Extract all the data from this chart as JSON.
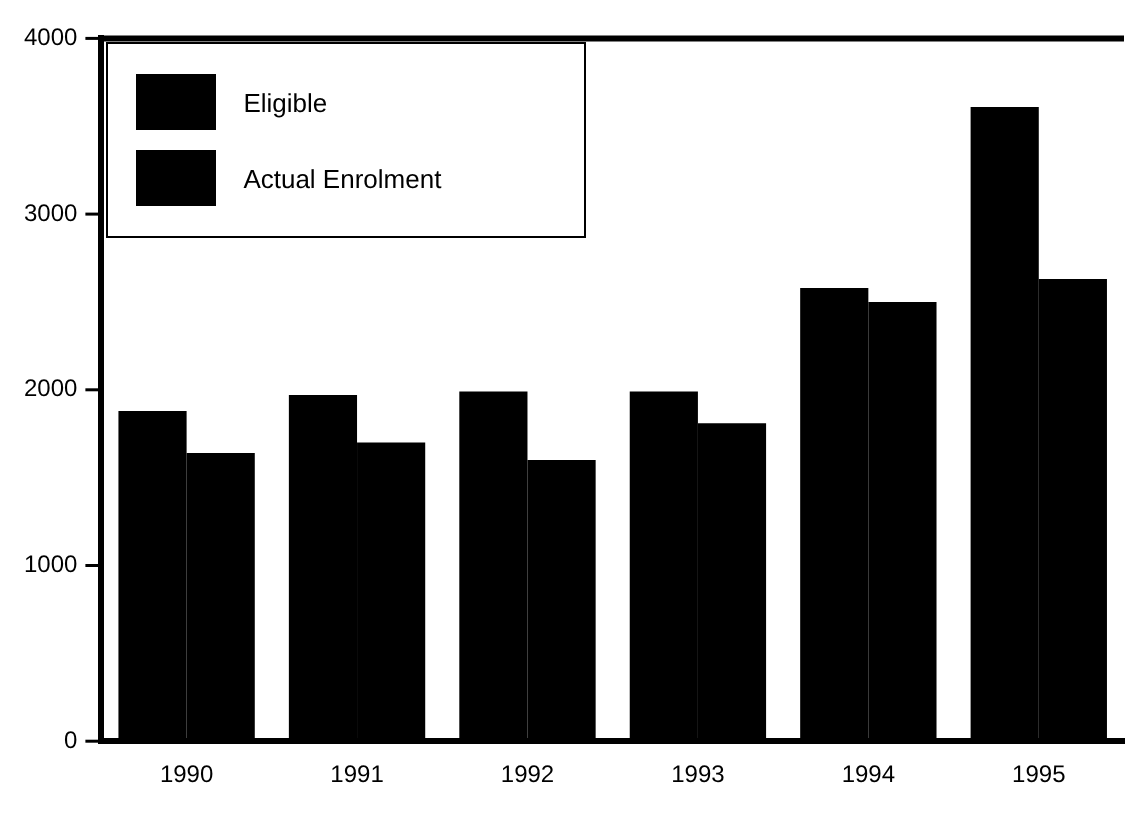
{
  "chart_data": {
    "type": "bar",
    "categories": [
      "1990",
      "1991",
      "1992",
      "1993",
      "1994",
      "1995"
    ],
    "series": [
      {
        "name": "Eligible",
        "color": "#000000",
        "values": [
          1880,
          1970,
          1990,
          1990,
          2580,
          3610
        ]
      },
      {
        "name": "Actual Enrolment",
        "color": "#000000",
        "values": [
          1640,
          1700,
          1600,
          1810,
          2500,
          2630
        ]
      }
    ],
    "ylim": [
      0,
      4000
    ],
    "yticks": [
      0,
      1000,
      2000,
      3000,
      4000
    ],
    "grid": false,
    "legend": "top left"
  }
}
